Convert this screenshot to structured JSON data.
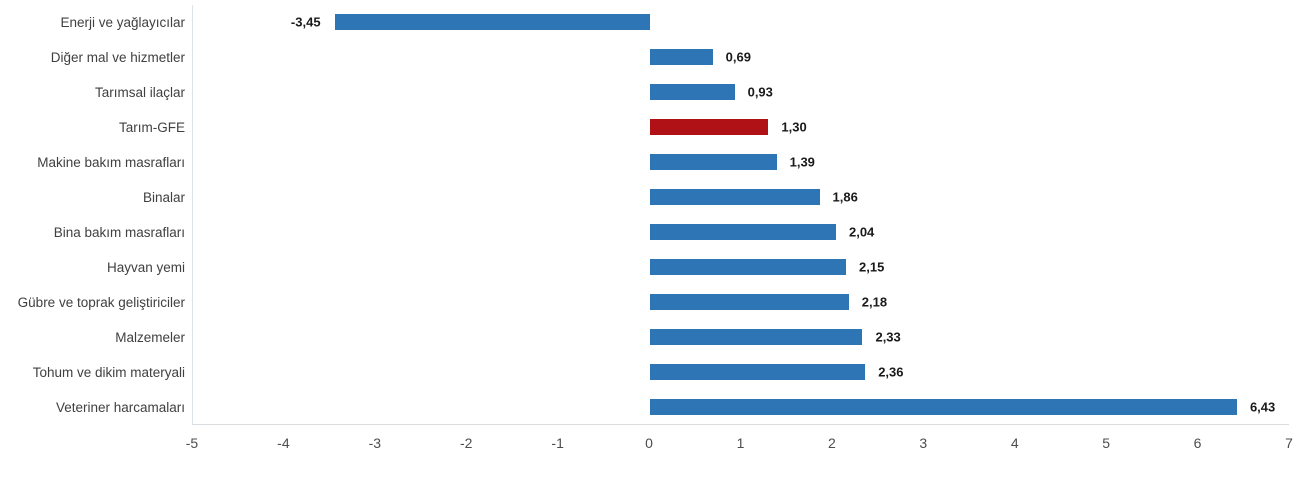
{
  "chart_data": {
    "type": "bar",
    "orientation": "horizontal",
    "categories": [
      "Enerji  ve yağlayıcılar",
      "Diğer mal ve hizmetler",
      "Tarımsal ilaçlar",
      "Tarım-GFE",
      "Makine bakım masrafları",
      "Binalar",
      "Bina bakım masrafları",
      "Hayvan yemi",
      "Gübre ve toprak geliştiriciler",
      "Malzemeler",
      "Tohum ve dikim materyali",
      "Veteriner harcamaları"
    ],
    "values": [
      -3.45,
      0.69,
      0.93,
      1.3,
      1.39,
      1.86,
      2.04,
      2.15,
      2.18,
      2.33,
      2.36,
      6.43
    ],
    "value_labels": [
      "-3,45",
      "0,69",
      "0,93",
      "1,30",
      "1,39",
      "1,86",
      "2,04",
      "2,15",
      "2,18",
      "2,33",
      "2,36",
      "6,43"
    ],
    "highlight_index": 3,
    "highlight_category": "Tarım-GFE",
    "colors": {
      "bar_default": "#2E75B6",
      "bar_highlight": "#B01116",
      "axis_line": "#D9DDE0",
      "tick_text": "#4D4D4D",
      "category_text": "#404040",
      "value_text": "#1A1A1A"
    },
    "xlim": [
      -5,
      7
    ],
    "x_ticks": [
      -5,
      -4,
      -3,
      -2,
      -1,
      0,
      1,
      2,
      3,
      4,
      5,
      6,
      7
    ],
    "x_tick_labels": [
      "-5",
      "-4",
      "-3",
      "-2",
      "-1",
      "0",
      "1",
      "2",
      "3",
      "4",
      "5",
      "6",
      "7"
    ],
    "grid": false,
    "legend": false
  }
}
